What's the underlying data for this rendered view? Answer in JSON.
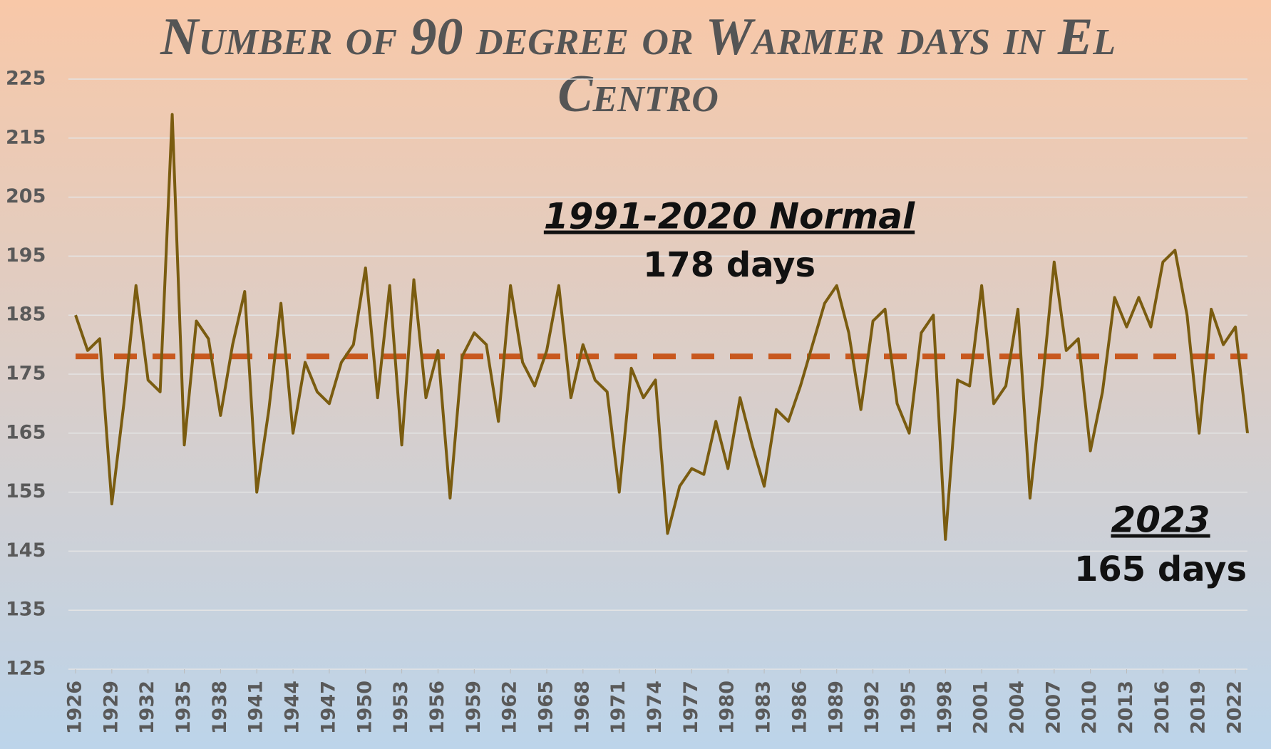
{
  "chart_data": {
    "type": "line",
    "title": "Number of 90 degree or Warmer days in El Centro",
    "x": [
      1926,
      1927,
      1928,
      1929,
      1930,
      1931,
      1932,
      1933,
      1934,
      1935,
      1936,
      1937,
      1938,
      1939,
      1940,
      1941,
      1942,
      1943,
      1944,
      1945,
      1946,
      1947,
      1948,
      1949,
      1950,
      1951,
      1952,
      1953,
      1954,
      1955,
      1956,
      1957,
      1958,
      1959,
      1960,
      1961,
      1962,
      1963,
      1964,
      1965,
      1966,
      1967,
      1968,
      1969,
      1970,
      1971,
      1972,
      1973,
      1974,
      1975,
      1976,
      1977,
      1978,
      1979,
      1980,
      1981,
      1982,
      1983,
      1984,
      1985,
      1986,
      1987,
      1988,
      1989,
      1990,
      1991,
      1992,
      1993,
      1994,
      1995,
      1996,
      1997,
      1998,
      1999,
      2000,
      2001,
      2002,
      2003,
      2004,
      2005,
      2006,
      2007,
      2008,
      2009,
      2010,
      2011,
      2012,
      2013,
      2014,
      2015,
      2016,
      2017,
      2018,
      2019,
      2020,
      2021,
      2022,
      2023
    ],
    "series": [
      {
        "color": "#7a5c10",
        "values": [
          185,
          179,
          181,
          153,
          170,
          190,
          174,
          172,
          219,
          163,
          184,
          181,
          168,
          180,
          189,
          155,
          169,
          187,
          165,
          177,
          172,
          170,
          177,
          180,
          193,
          171,
          190,
          163,
          191,
          171,
          179,
          154,
          178,
          182,
          180,
          167,
          190,
          177,
          173,
          179,
          190,
          171,
          180,
          174,
          172,
          155,
          176,
          171,
          174,
          148,
          156,
          159,
          158,
          167,
          159,
          171,
          163,
          156,
          169,
          167,
          173,
          180,
          187,
          190,
          182,
          169,
          184,
          186,
          170,
          165,
          182,
          185,
          147,
          174,
          173,
          190,
          170,
          173,
          186,
          154,
          173,
          194,
          179,
          181,
          162,
          172,
          188,
          183,
          188,
          183,
          194,
          196,
          185,
          165,
          186,
          180,
          183,
          165
        ]
      }
    ],
    "reference_line": {
      "value": 178,
      "color": "#c8581e"
    },
    "annotations": [
      {
        "title": "1991-2020 Normal",
        "text": "178 days"
      },
      {
        "title": "2023",
        "text": "165 days"
      }
    ],
    "xlim": [
      1926,
      2023
    ],
    "xticks": [
      1926,
      1929,
      1932,
      1935,
      1938,
      1941,
      1944,
      1947,
      1950,
      1953,
      1956,
      1959,
      1962,
      1965,
      1968,
      1971,
      1974,
      1977,
      1980,
      1983,
      1986,
      1989,
      1992,
      1995,
      1998,
      2001,
      2004,
      2007,
      2010,
      2013,
      2016,
      2019,
      2022
    ],
    "ylim": [
      125,
      225
    ],
    "yticks": [
      125,
      135,
      145,
      155,
      165,
      175,
      185,
      195,
      205,
      215,
      225
    ],
    "grid": true
  }
}
